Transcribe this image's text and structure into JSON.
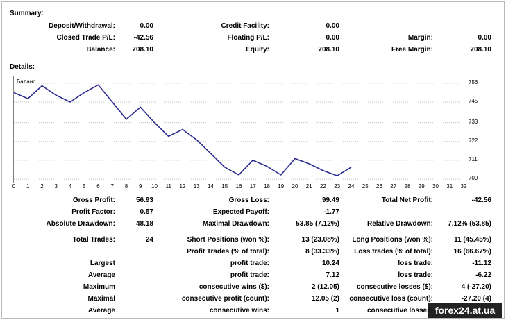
{
  "summary": {
    "title": "Summary:",
    "deposit_label": "Deposit/Withdrawal:",
    "deposit_value": "0.00",
    "credit_label": "Credit Facility:",
    "credit_value": "0.00",
    "closed_pl_label": "Closed Trade P/L:",
    "closed_pl_value": "-42.56",
    "floating_label": "Floating P/L:",
    "floating_value": "0.00",
    "margin_label": "Margin:",
    "margin_value": "0.00",
    "balance_label": "Balance:",
    "balance_value": "708.10",
    "equity_label": "Equity:",
    "equity_value": "708.10",
    "free_margin_label": "Free Margin:",
    "free_margin_value": "708.10"
  },
  "details": {
    "title": "Details:"
  },
  "chart_data": {
    "type": "line",
    "title": "Баланс",
    "x": [
      0,
      1,
      2,
      3,
      4,
      5,
      6,
      7,
      8,
      9,
      10,
      11,
      12,
      13,
      14,
      15,
      16,
      17,
      18,
      19,
      20,
      21,
      22,
      23,
      24
    ],
    "series": [
      {
        "values": [
          750.5,
          747,
          754.5,
          749,
          745,
          750.5,
          755,
          745,
          735,
          742,
          733,
          725,
          729,
          723,
          715,
          707,
          702.5,
          711,
          707.5,
          702.5,
          712,
          709,
          705,
          702,
          707
        ]
      }
    ],
    "x_ticks": [
      "0",
      "1",
      "2",
      "3",
      "4",
      "5",
      "6",
      "7",
      "8",
      "9",
      "10",
      "11",
      "12",
      "13",
      "14",
      "15",
      "16",
      "17",
      "18",
      "19",
      "20",
      "21",
      "22",
      "23",
      "24",
      "25",
      "26",
      "27",
      "28",
      "29",
      "30",
      "31",
      "32"
    ],
    "y_ticks": [
      "756",
      "745",
      "733",
      "722",
      "711",
      "700"
    ],
    "xlim": [
      0,
      32
    ],
    "ylim": [
      698,
      760
    ],
    "grid": true,
    "line_color": "#2b2b8f"
  },
  "stats": {
    "gross_profit_label": "Gross Profit:",
    "gross_profit_value": "56.93",
    "gross_loss_label": "Gross Loss:",
    "gross_loss_value": "99.49",
    "total_net_profit_label": "Total Net Profit:",
    "total_net_profit_value": "-42.56",
    "profit_factor_label": "Profit Factor:",
    "profit_factor_value": "0.57",
    "expected_payoff_label": "Expected Payoff:",
    "expected_payoff_value": "-1.77",
    "absolute_dd_label": "Absolute Drawdown:",
    "absolute_dd_value": "48.18",
    "maximal_dd_label": "Maximal Drawdown:",
    "maximal_dd_value": "53.85 (7.12%)",
    "relative_dd_label": "Relative Drawdown:",
    "relative_dd_value": "7.12% (53.85)",
    "total_trades_label": "Total Trades:",
    "total_trades_value": "24",
    "short_positions_label": "Short Positions (won %):",
    "short_positions_value": "13 (23.08%)",
    "long_positions_label": "Long Positions (won %):",
    "long_positions_value": "11 (45.45%)",
    "profit_trades_label": "Profit Trades (% of total):",
    "profit_trades_value": "8 (33.33%)",
    "loss_trades_label": "Loss trades (% of total):",
    "loss_trades_value": "16 (66.67%)",
    "largest_label": "Largest",
    "largest_profit_label": "profit trade:",
    "largest_profit_value": "10.24",
    "largest_loss_label": "loss trade:",
    "largest_loss_value": "-11.12",
    "average_label": "Average",
    "average_profit_label": "profit trade:",
    "average_profit_value": "7.12",
    "average_loss_label": "loss trade:",
    "average_loss_value": "-6.22",
    "maximum_label": "Maximum",
    "max_cons_wins_label": "consecutive wins ($):",
    "max_cons_wins_value": "2 (12.05)",
    "max_cons_losses_label": "consecutive losses ($):",
    "max_cons_losses_value": "4 (-27.20)",
    "maximal_label": "Maximal",
    "maximal_cons_profit_label": "consecutive profit (count):",
    "maximal_cons_profit_value": "12.05 (2)",
    "maximal_cons_loss_label": "consecutive loss (count):",
    "maximal_cons_loss_value": "-27.20 (4)",
    "average2_label": "Average",
    "avg_cons_wins_label": "consecutive wins:",
    "avg_cons_wins_value": "1",
    "avg_cons_losses_label": "consecutive losses:"
  },
  "watermark": "forex24.at.ua"
}
